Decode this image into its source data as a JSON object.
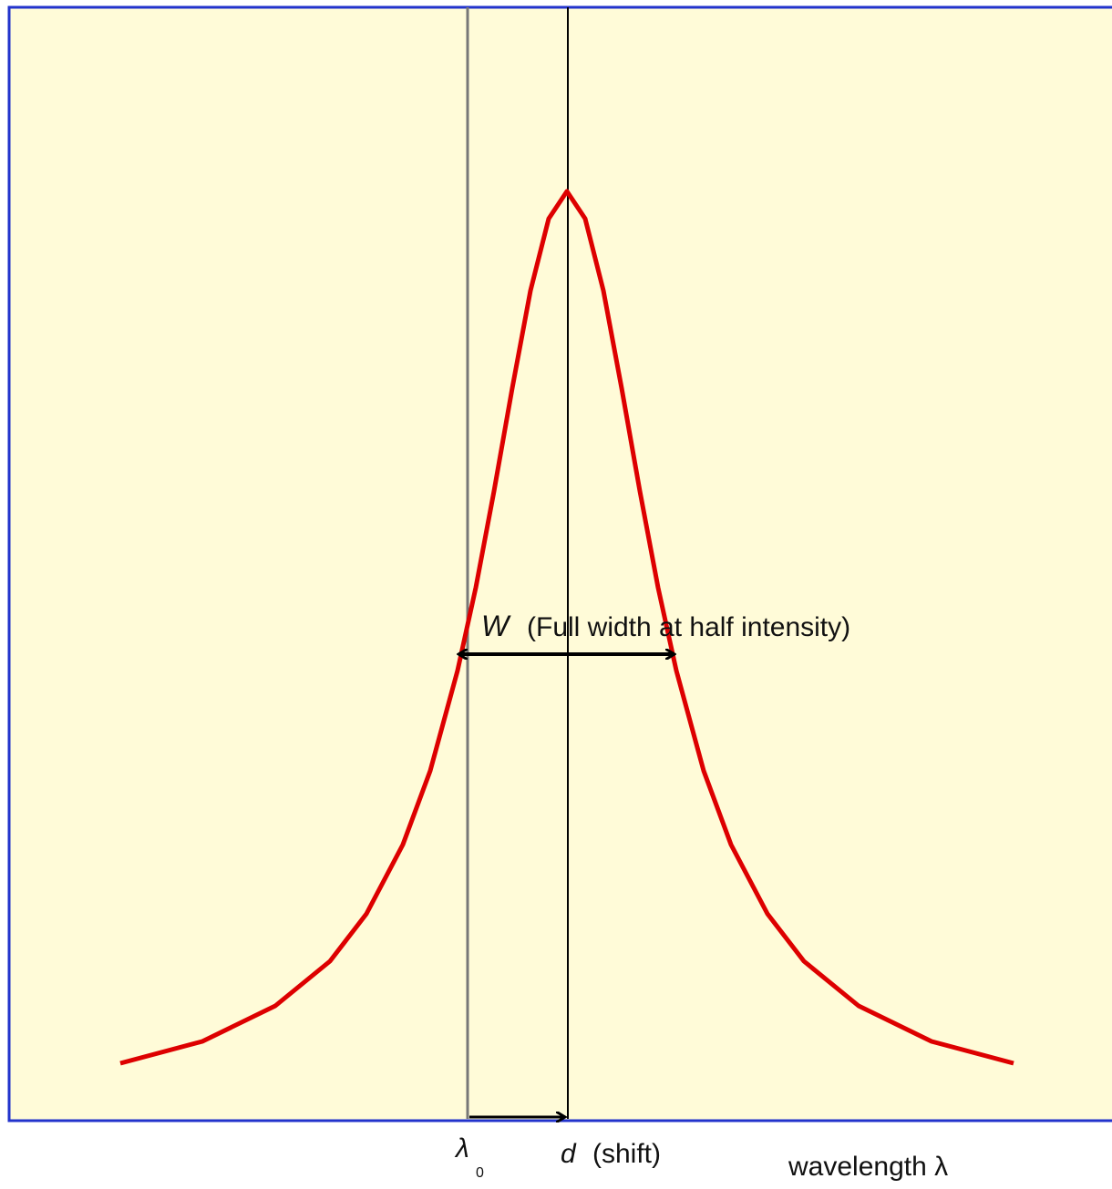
{
  "labels": {
    "width_symbol": "W",
    "width_text": "(Full width at half intensity)",
    "lambda_symbol": "λ",
    "lambda_subscript": "0",
    "shift_symbol": "d",
    "shift_text": "(shift)",
    "axis_label": "wavelength λ"
  }
}
